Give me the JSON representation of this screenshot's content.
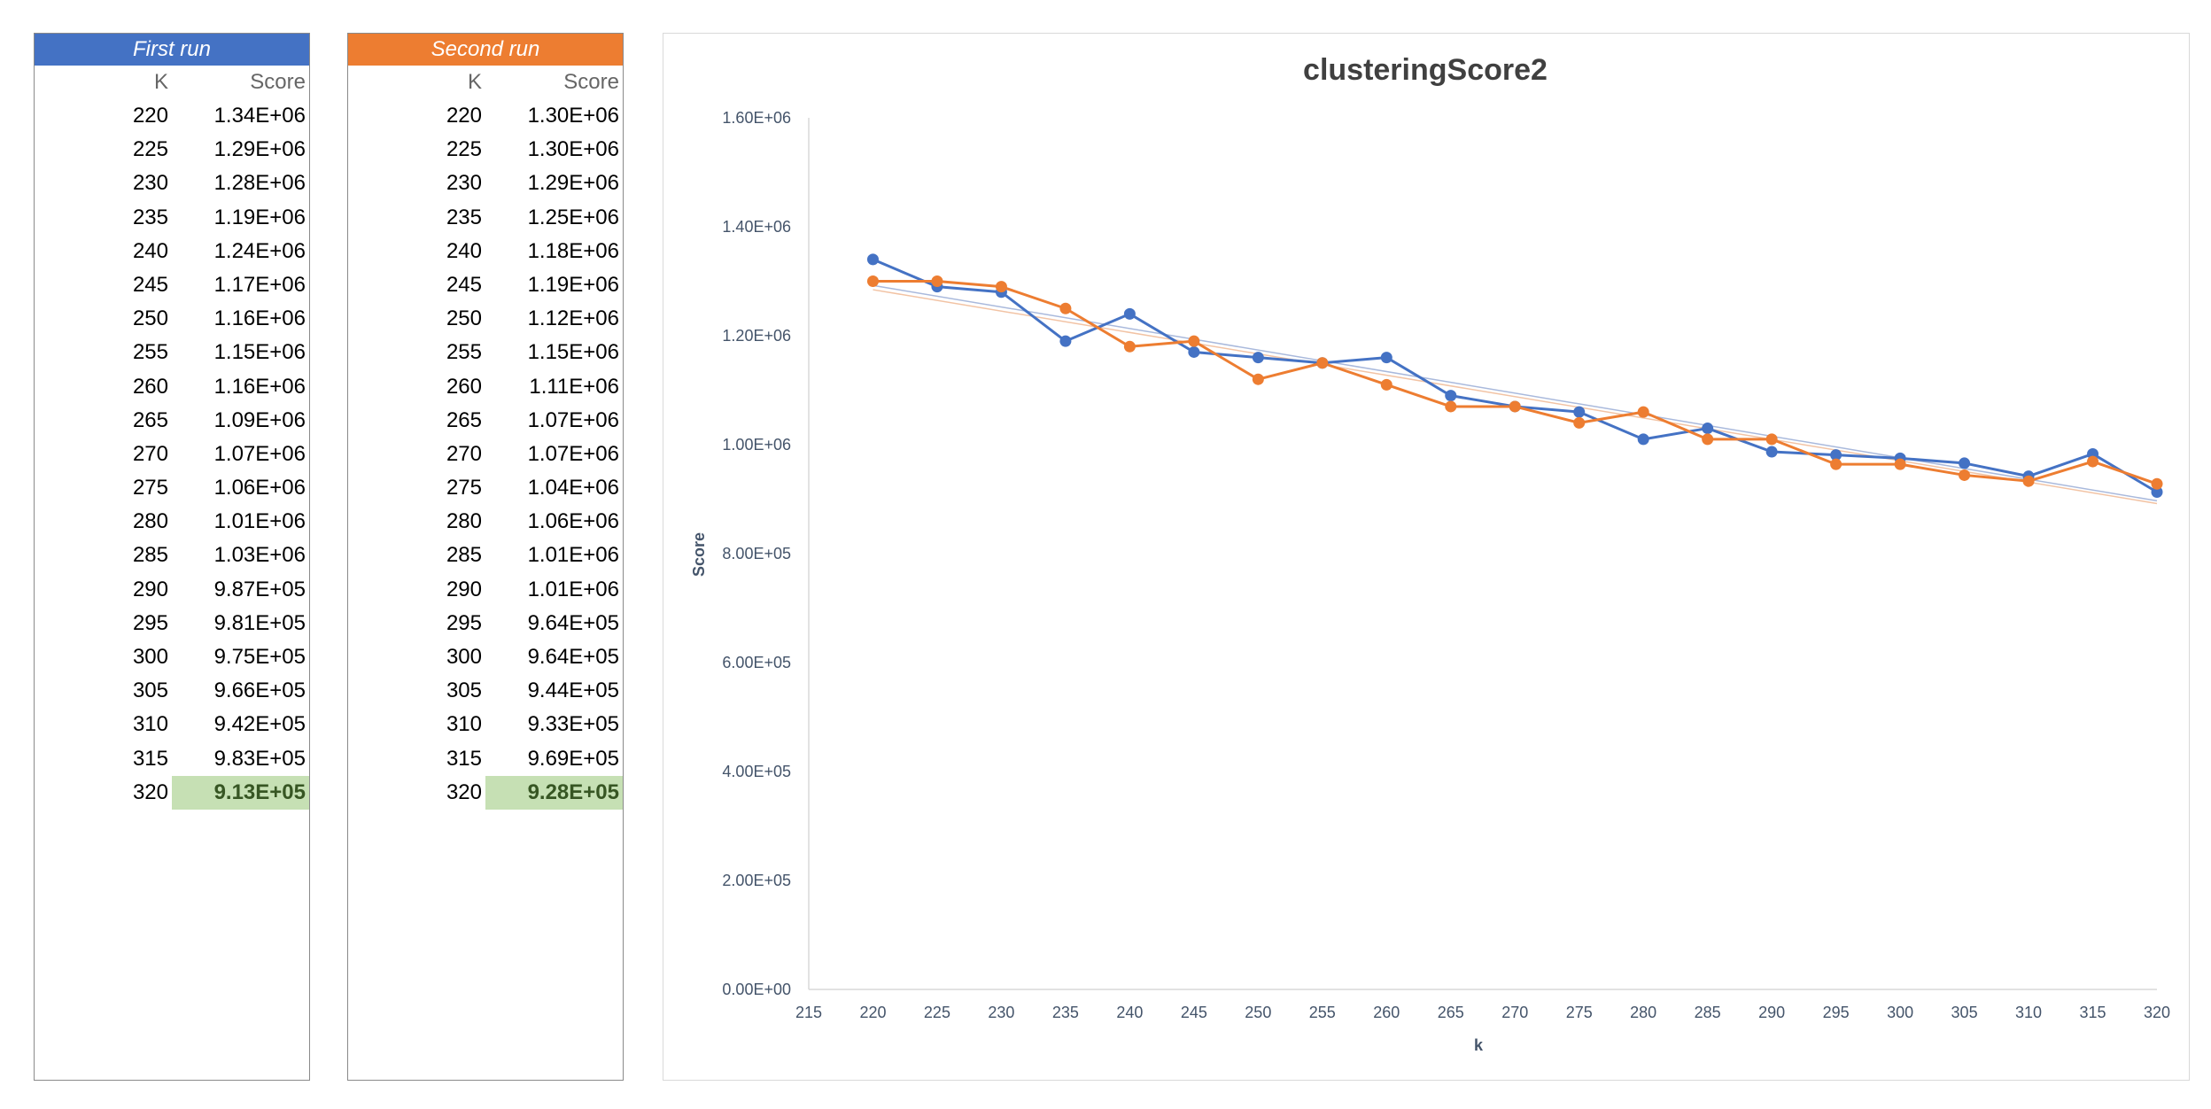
{
  "tables": {
    "first": {
      "title": "First run",
      "col_k": "K",
      "col_score": "Score",
      "rows": [
        {
          "k": "220",
          "score": "1.34E+06"
        },
        {
          "k": "225",
          "score": "1.29E+06"
        },
        {
          "k": "230",
          "score": "1.28E+06"
        },
        {
          "k": "235",
          "score": "1.19E+06"
        },
        {
          "k": "240",
          "score": "1.24E+06"
        },
        {
          "k": "245",
          "score": "1.17E+06"
        },
        {
          "k": "250",
          "score": "1.16E+06"
        },
        {
          "k": "255",
          "score": "1.15E+06"
        },
        {
          "k": "260",
          "score": "1.16E+06"
        },
        {
          "k": "265",
          "score": "1.09E+06"
        },
        {
          "k": "270",
          "score": "1.07E+06"
        },
        {
          "k": "275",
          "score": "1.06E+06"
        },
        {
          "k": "280",
          "score": "1.01E+06"
        },
        {
          "k": "285",
          "score": "1.03E+06"
        },
        {
          "k": "290",
          "score": "9.87E+05"
        },
        {
          "k": "295",
          "score": "9.81E+05"
        },
        {
          "k": "300",
          "score": "9.75E+05"
        },
        {
          "k": "305",
          "score": "9.66E+05"
        },
        {
          "k": "310",
          "score": "9.42E+05"
        },
        {
          "k": "315",
          "score": "9.83E+05"
        },
        {
          "k": "320",
          "score": "9.13E+05"
        }
      ]
    },
    "second": {
      "title": "Second run",
      "col_k": "K",
      "col_score": "Score",
      "rows": [
        {
          "k": "220",
          "score": "1.30E+06"
        },
        {
          "k": "225",
          "score": "1.30E+06"
        },
        {
          "k": "230",
          "score": "1.29E+06"
        },
        {
          "k": "235",
          "score": "1.25E+06"
        },
        {
          "k": "240",
          "score": "1.18E+06"
        },
        {
          "k": "245",
          "score": "1.19E+06"
        },
        {
          "k": "250",
          "score": "1.12E+06"
        },
        {
          "k": "255",
          "score": "1.15E+06"
        },
        {
          "k": "260",
          "score": "1.11E+06"
        },
        {
          "k": "265",
          "score": "1.07E+06"
        },
        {
          "k": "270",
          "score": "1.07E+06"
        },
        {
          "k": "275",
          "score": "1.04E+06"
        },
        {
          "k": "280",
          "score": "1.06E+06"
        },
        {
          "k": "285",
          "score": "1.01E+06"
        },
        {
          "k": "290",
          "score": "1.01E+06"
        },
        {
          "k": "295",
          "score": "9.64E+05"
        },
        {
          "k": "300",
          "score": "9.64E+05"
        },
        {
          "k": "305",
          "score": "9.44E+05"
        },
        {
          "k": "310",
          "score": "9.33E+05"
        },
        {
          "k": "315",
          "score": "9.69E+05"
        },
        {
          "k": "320",
          "score": "9.28E+05"
        }
      ]
    }
  },
  "chart_data": {
    "type": "line",
    "title": "clusteringScore2",
    "xlabel": "k",
    "ylabel": "Score",
    "xlim": [
      215,
      320
    ],
    "ylim": [
      0,
      1600000
    ],
    "x_ticks": [
      "215",
      "220",
      "225",
      "230",
      "235",
      "240",
      "245",
      "250",
      "255",
      "260",
      "265",
      "270",
      "275",
      "280",
      "285",
      "290",
      "295",
      "300",
      "305",
      "310",
      "315",
      "320"
    ],
    "y_ticks": [
      "0.00E+00",
      "2.00E+05",
      "4.00E+05",
      "6.00E+05",
      "8.00E+05",
      "1.00E+06",
      "1.20E+06",
      "1.40E+06",
      "1.60E+06"
    ],
    "grid": false,
    "trendlines": true,
    "x": [
      220,
      225,
      230,
      235,
      240,
      245,
      250,
      255,
      260,
      265,
      270,
      275,
      280,
      285,
      290,
      295,
      300,
      305,
      310,
      315,
      320
    ],
    "series": [
      {
        "color": "#4472c4",
        "trend_color": "#a9b9dc",
        "values": [
          1340000,
          1290000,
          1280000,
          1190000,
          1240000,
          1170000,
          1160000,
          1150000,
          1160000,
          1090000,
          1070000,
          1060000,
          1010000,
          1030000,
          987000,
          981000,
          975000,
          966000,
          942000,
          983000,
          913000
        ]
      },
      {
        "color": "#ed7d31",
        "trend_color": "#f2c3a4",
        "values": [
          1300000,
          1300000,
          1290000,
          1250000,
          1180000,
          1190000,
          1120000,
          1150000,
          1110000,
          1070000,
          1070000,
          1040000,
          1060000,
          1010000,
          1010000,
          964000,
          964000,
          944000,
          933000,
          969000,
          928000
        ]
      }
    ]
  }
}
